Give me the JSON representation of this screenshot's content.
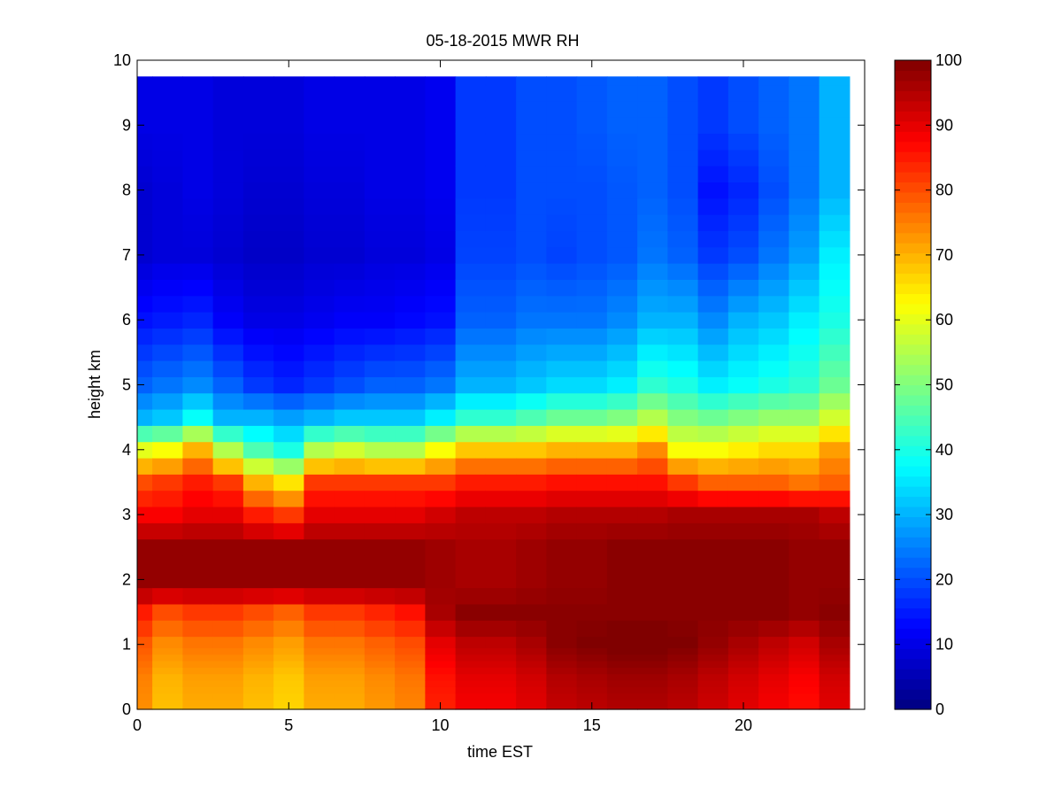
{
  "chart_data": {
    "type": "heatmap",
    "title": "05-18-2015 MWR RH",
    "xlabel": "time EST",
    "ylabel": "height km",
    "xlim": [
      0,
      24
    ],
    "ylim": [
      0,
      10
    ],
    "x_ticks": [
      "0",
      "5",
      "10",
      "15",
      "20"
    ],
    "y_ticks": [
      "0",
      "1",
      "2",
      "3",
      "4",
      "5",
      "6",
      "7",
      "8",
      "9",
      "10"
    ],
    "colorbar": {
      "range": [
        0,
        100
      ],
      "ticks": [
        "0",
        "10",
        "20",
        "30",
        "40",
        "50",
        "60",
        "70",
        "80",
        "90",
        "100"
      ],
      "colormap": "jet"
    },
    "grid": false,
    "x": [
      0,
      1,
      2,
      3,
      4,
      5,
      6,
      7,
      8,
      9,
      10,
      11,
      12,
      13,
      14,
      15,
      16,
      17,
      18,
      19,
      20,
      21,
      22,
      23
    ],
    "heights": [
      0,
      0.1,
      0.2,
      0.3,
      0.4,
      0.5,
      0.6,
      0.7,
      0.8,
      0.9,
      1.0,
      1.25,
      1.5,
      1.75,
      2.0,
      2.25,
      2.5,
      2.75,
      3.0,
      3.25,
      3.5,
      3.75,
      4.0,
      4.25,
      4.5,
      4.75,
      5.0,
      5.25,
      5.5,
      5.75,
      6.0,
      6.25,
      6.5,
      6.75,
      7.0,
      7.25,
      7.5,
      7.75,
      8.0,
      8.25,
      8.5,
      8.75,
      9.0,
      9.25,
      9.5,
      9.75
    ],
    "profile_params": [
      {
        "t": 0,
        "low": 75,
        "mid": 98,
        "top3": 88,
        "d3": 80,
        "d4": 60,
        "d45": 30,
        "h5": 22,
        "h6": 14,
        "h7": 8,
        "h8": 8,
        "h9": 10
      },
      {
        "t": 1,
        "low": 70,
        "mid": 98,
        "top3": 88,
        "d3": 82,
        "d4": 62,
        "d45": 32,
        "h5": 24,
        "h6": 15,
        "h7": 9,
        "h8": 9,
        "h9": 10
      },
      {
        "t": 2,
        "low": 72,
        "mid": 98,
        "top3": 90,
        "d3": 85,
        "d4": 70,
        "d45": 38,
        "h5": 26,
        "h6": 16,
        "h7": 9,
        "h8": 10,
        "h9": 10
      },
      {
        "t": 3,
        "low": 72,
        "mid": 98,
        "top3": 90,
        "d3": 82,
        "d4": 55,
        "d45": 30,
        "h5": 22,
        "h6": 12,
        "h7": 8,
        "h8": 9,
        "h9": 9
      },
      {
        "t": 4,
        "low": 70,
        "mid": 98,
        "top3": 85,
        "d3": 70,
        "d4": 45,
        "d45": 30,
        "h5": 18,
        "h6": 10,
        "h7": 7,
        "h8": 8,
        "h9": 9
      },
      {
        "t": 5,
        "low": 68,
        "mid": 98,
        "top3": 82,
        "d3": 65,
        "d4": 40,
        "d45": 28,
        "h5": 16,
        "h6": 10,
        "h7": 7,
        "h8": 8,
        "h9": 9
      },
      {
        "t": 6,
        "low": 72,
        "mid": 98,
        "top3": 90,
        "d3": 82,
        "d4": 55,
        "d45": 30,
        "h5": 18,
        "h6": 11,
        "h7": 8,
        "h8": 9,
        "h9": 10
      },
      {
        "t": 7,
        "low": 72,
        "mid": 98,
        "top3": 90,
        "d3": 82,
        "d4": 58,
        "d45": 32,
        "h5": 20,
        "h6": 12,
        "h7": 8,
        "h8": 9,
        "h9": 10
      },
      {
        "t": 8,
        "low": 74,
        "mid": 98,
        "top3": 90,
        "d3": 82,
        "d4": 55,
        "d45": 32,
        "h5": 22,
        "h6": 12,
        "h7": 9,
        "h8": 10,
        "h9": 10
      },
      {
        "t": 9,
        "low": 76,
        "mid": 98,
        "top3": 90,
        "d3": 82,
        "d4": 55,
        "d45": 32,
        "h5": 22,
        "h6": 13,
        "h7": 9,
        "h8": 10,
        "h9": 10
      },
      {
        "t": 10,
        "low": 86,
        "mid": 97,
        "top3": 92,
        "d3": 82,
        "d4": 62,
        "d45": 36,
        "h5": 24,
        "h6": 14,
        "h7": 10,
        "h8": 11,
        "h9": 11
      },
      {
        "t": 11,
        "low": 90,
        "mid": 96,
        "top3": 94,
        "d3": 85,
        "d4": 68,
        "d45": 42,
        "h5": 30,
        "h6": 22,
        "h7": 19,
        "h8": 18,
        "h9": 18
      },
      {
        "t": 12,
        "low": 90,
        "mid": 96,
        "top3": 94,
        "d3": 85,
        "d4": 68,
        "d45": 42,
        "h5": 30,
        "h6": 22,
        "h7": 19,
        "h8": 18,
        "h9": 18
      },
      {
        "t": 13,
        "low": 92,
        "mid": 97,
        "top3": 94,
        "d3": 85,
        "d4": 68,
        "d45": 45,
        "h5": 32,
        "h6": 24,
        "h7": 20,
        "h8": 20,
        "h9": 20
      },
      {
        "t": 14,
        "low": 95,
        "mid": 98,
        "top3": 95,
        "d3": 86,
        "d4": 70,
        "d45": 48,
        "h5": 34,
        "h6": 24,
        "h7": 19,
        "h8": 20,
        "h9": 20
      },
      {
        "t": 15,
        "low": 96,
        "mid": 98,
        "top3": 95,
        "d3": 86,
        "d4": 70,
        "d45": 48,
        "h5": 34,
        "h6": 24,
        "h7": 20,
        "h8": 20,
        "h9": 21
      },
      {
        "t": 16,
        "low": 97,
        "mid": 99,
        "top3": 95,
        "d3": 86,
        "d4": 70,
        "d45": 50,
        "h5": 36,
        "h6": 26,
        "h7": 21,
        "h8": 21,
        "h9": 22
      },
      {
        "t": 17,
        "low": 97,
        "mid": 99,
        "top3": 95,
        "d3": 86,
        "d4": 74,
        "d45": 55,
        "h5": 42,
        "h6": 30,
        "h7": 24,
        "h8": 22,
        "h9": 22
      },
      {
        "t": 18,
        "low": 96,
        "mid": 99,
        "top3": 96,
        "d3": 82,
        "d4": 62,
        "d45": 50,
        "h5": 40,
        "h6": 30,
        "h7": 22,
        "h8": 20,
        "h9": 20
      },
      {
        "t": 19,
        "low": 94,
        "mid": 99,
        "top3": 96,
        "d3": 78,
        "d4": 62,
        "d45": 48,
        "h5": 36,
        "h6": 26,
        "h7": 18,
        "h8": 14,
        "h9": 18
      },
      {
        "t": 20,
        "low": 92,
        "mid": 99,
        "top3": 96,
        "d3": 78,
        "d4": 64,
        "d45": 50,
        "h5": 38,
        "h6": 30,
        "h7": 20,
        "h8": 16,
        "h9": 20
      },
      {
        "t": 21,
        "low": 90,
        "mid": 99,
        "top3": 96,
        "d3": 78,
        "d4": 66,
        "d45": 52,
        "h5": 40,
        "h6": 32,
        "h7": 24,
        "h8": 20,
        "h9": 22
      },
      {
        "t": 22,
        "low": 88,
        "mid": 98,
        "top3": 96,
        "d3": 76,
        "d4": 66,
        "d45": 52,
        "h5": 42,
        "h6": 36,
        "h7": 28,
        "h8": 24,
        "h9": 24
      },
      {
        "t": 23,
        "low": 92,
        "mid": 98,
        "top3": 94,
        "d3": 78,
        "d4": 72,
        "d45": 58,
        "h5": 48,
        "h6": 40,
        "h7": 36,
        "h8": 30,
        "h9": 30
      }
    ]
  }
}
